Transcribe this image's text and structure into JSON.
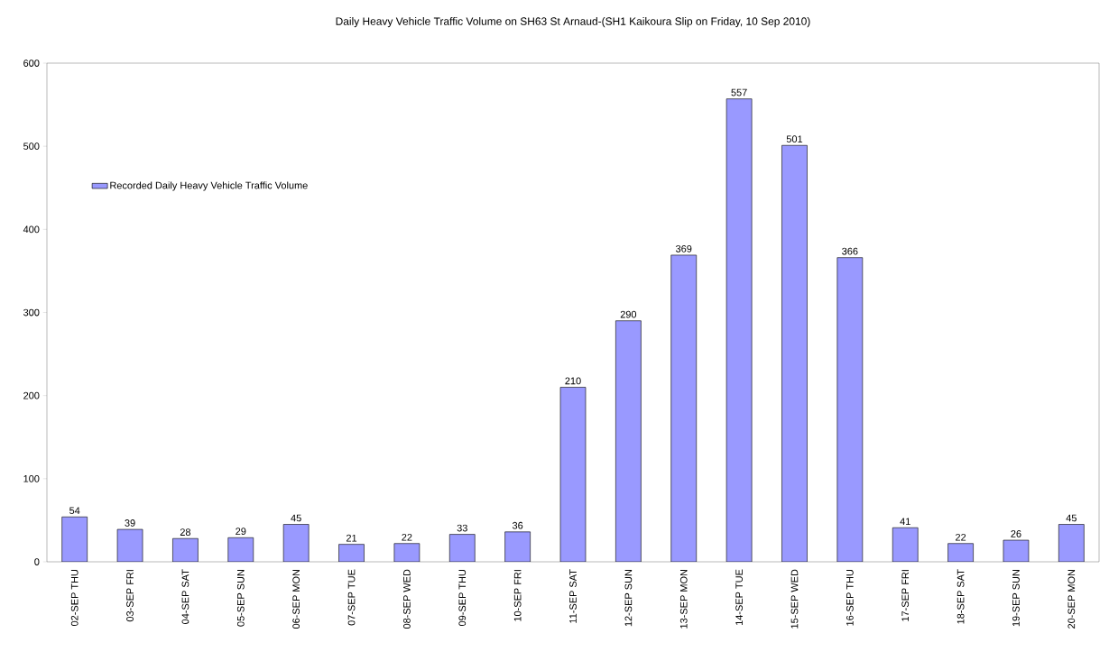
{
  "chart_data": {
    "type": "bar",
    "title": "Daily Heavy Vehicle Traffic Volume on SH63 St Arnaud-(SH1 Kaikoura Slip on Friday, 10 Sep 2010)",
    "categories": [
      "02-SEP THU",
      "03-SEP FRI",
      "04-SEP SAT",
      "05-SEP SUN",
      "06-SEP MON",
      "07-SEP TUE",
      "08-SEP WED",
      "09-SEP THU",
      "10-SEP FRI",
      "11-SEP SAT",
      "12-SEP SUN",
      "13-SEP MON",
      "14-SEP TUE",
      "15-SEP WED",
      "16-SEP THU",
      "17-SEP FRI",
      "18-SEP SAT",
      "19-SEP SUN",
      "20-SEP MON"
    ],
    "series": [
      {
        "name": "Recorded Daily Heavy Vehicle Traffic Volume",
        "color": "#9999ff",
        "values": [
          54,
          39,
          28,
          29,
          45,
          21,
          22,
          33,
          36,
          210,
          290,
          369,
          557,
          501,
          366,
          41,
          22,
          26,
          45
        ]
      }
    ],
    "ylim": [
      0,
      600
    ],
    "yticks": [
      0,
      100,
      200,
      300,
      400,
      500,
      600
    ],
    "data_labels": true,
    "grid": false,
    "legend": "top left"
  }
}
